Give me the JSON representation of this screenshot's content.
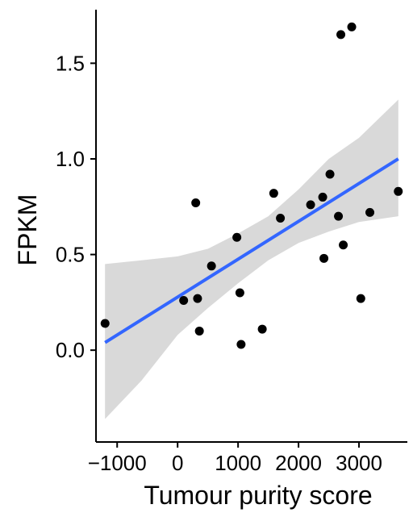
{
  "chart_data": {
    "type": "scatter",
    "title": "",
    "xlabel": "Tumour purity score",
    "ylabel": "FPKM",
    "xlim": [
      -1350,
      3800
    ],
    "ylim": [
      -0.48,
      1.78
    ],
    "x_ticks": [
      -1000,
      0,
      1000,
      2000,
      3000
    ],
    "x_tick_labels": [
      "−1000",
      "0",
      "1000",
      "2000",
      "3000"
    ],
    "y_ticks": [
      0.0,
      0.5,
      1.0,
      1.5
    ],
    "y_tick_labels": [
      "0.0",
      "0.5",
      "1.0",
      "1.5"
    ],
    "grid": false,
    "legend": "none",
    "points": [
      {
        "x": -1200,
        "y": 0.14
      },
      {
        "x": 100,
        "y": 0.26
      },
      {
        "x": 300,
        "y": 0.77
      },
      {
        "x": 330,
        "y": 0.27
      },
      {
        "x": 360,
        "y": 0.1
      },
      {
        "x": 560,
        "y": 0.44
      },
      {
        "x": 980,
        "y": 0.59
      },
      {
        "x": 1030,
        "y": 0.3
      },
      {
        "x": 1050,
        "y": 0.03
      },
      {
        "x": 1400,
        "y": 0.11
      },
      {
        "x": 1590,
        "y": 0.82
      },
      {
        "x": 1700,
        "y": 0.69
      },
      {
        "x": 2200,
        "y": 0.76
      },
      {
        "x": 2400,
        "y": 0.8
      },
      {
        "x": 2420,
        "y": 0.48
      },
      {
        "x": 2520,
        "y": 0.92
      },
      {
        "x": 2660,
        "y": 0.7
      },
      {
        "x": 2700,
        "y": 1.65
      },
      {
        "x": 2740,
        "y": 0.55
      },
      {
        "x": 2880,
        "y": 1.69
      },
      {
        "x": 3030,
        "y": 0.27
      },
      {
        "x": 3180,
        "y": 0.72
      },
      {
        "x": 3650,
        "y": 0.83
      }
    ],
    "fit_line": {
      "x": [
        -1200,
        3650
      ],
      "y": [
        0.04,
        1.0
      ]
    },
    "confidence_band": {
      "x": [
        -1200,
        -600,
        0,
        500,
        1000,
        1500,
        2000,
        2500,
        3000,
        3650
      ],
      "lower": [
        -0.36,
        -0.16,
        0.08,
        0.22,
        0.35,
        0.47,
        0.56,
        0.62,
        0.67,
        0.7
      ],
      "upper": [
        0.45,
        0.47,
        0.49,
        0.53,
        0.61,
        0.7,
        0.84,
        1.0,
        1.11,
        1.31
      ]
    },
    "colors": {
      "points": "#000000",
      "fit_line": "#3366FF",
      "band": "#D9D9D9",
      "axis": "#000000"
    }
  }
}
